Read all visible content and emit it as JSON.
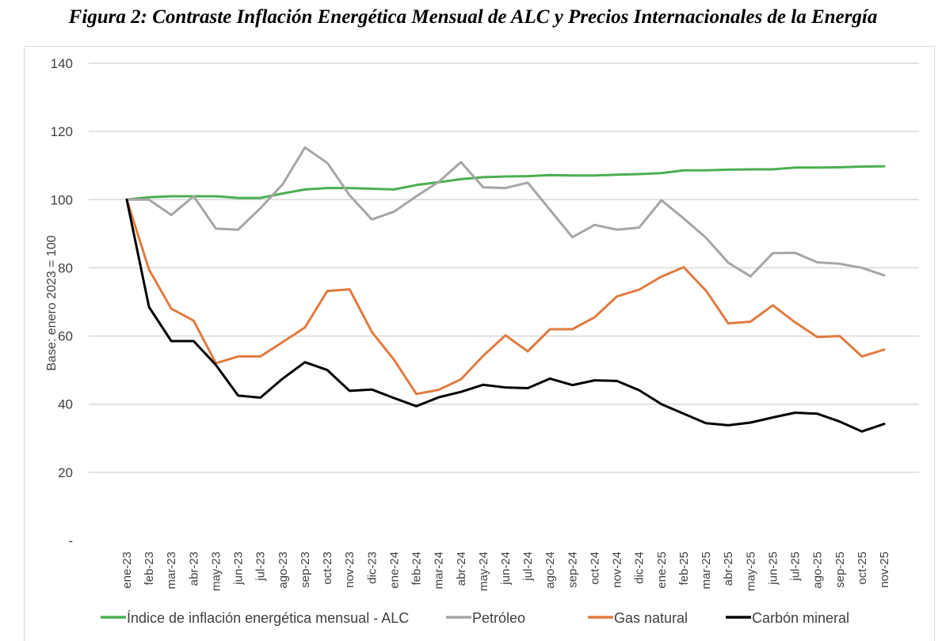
{
  "chart_data": {
    "type": "line",
    "title": "Figura 2: Contraste Inflación Energética Mensual de ALC y Precios Internacionales de la Energía",
    "xlabel": "",
    "ylabel": "Base: enero 2023 = 100",
    "ylim": [
      0,
      140
    ],
    "yticks": [
      0,
      20,
      40,
      60,
      80,
      100,
      120,
      140
    ],
    "ytick_labels": [
      "-",
      "20",
      "40",
      "60",
      "80",
      "100",
      "120",
      "140"
    ],
    "grid": true,
    "legend_position": "bottom",
    "categories": [
      "ene-23",
      "feb-23",
      "mar-23",
      "abr-23",
      "may-23",
      "jun-23",
      "jul-23",
      "ago-23",
      "sep-23",
      "oct-23",
      "nov-23",
      "dic-23",
      "ene-24",
      "feb-24",
      "mar-24",
      "abr-24",
      "may-24",
      "jun-24",
      "jul-24",
      "ago-24",
      "sep-24",
      "oct-24",
      "nov-24",
      "dic-24",
      "ene-25",
      "feb-25",
      "mar-25",
      "abr-25",
      "may-25",
      "jun-25",
      "jul-25",
      "ago-25",
      "sep-25",
      "oct-25",
      "nov-25"
    ],
    "series": [
      {
        "name": "Índice de inflación energética mensual - ALC",
        "color": "#4caf50",
        "values": [
          100,
          100.7,
          101,
          101,
          101,
          100.5,
          100.5,
          101.8,
          103,
          103.4,
          103.4,
          103.2,
          103,
          104.3,
          105.1,
          106,
          106.6,
          106.8,
          106.9,
          107.2,
          107.1,
          107.1,
          107.3,
          107.5,
          107.8,
          108.6,
          108.6,
          108.8,
          108.9,
          108.9,
          109.4,
          109.4,
          109.5,
          109.7,
          109.8
        ]
      },
      {
        "name": "Petróleo",
        "color": "#a6a6a6",
        "values": [
          100,
          100,
          95.5,
          101,
          91.5,
          91.2,
          97.5,
          104.5,
          115.3,
          110.8,
          101.3,
          94.2,
          96.5,
          101,
          105.2,
          111,
          103.6,
          103.4,
          105,
          97,
          89,
          92.6,
          91.2,
          91.8,
          99.8,
          94.5,
          88.8,
          81.5,
          77.5,
          84.3,
          84.4,
          81.6,
          81.2,
          80,
          77.8
        ]
      },
      {
        "name": "Gas natural",
        "color": "#e07b3f",
        "values": [
          100,
          79.5,
          68,
          64.5,
          52,
          54,
          54,
          58.2,
          62.5,
          73.2,
          73.7,
          61.2,
          53,
          43,
          44.2,
          47.3,
          54.2,
          60.2,
          55.5,
          62,
          62,
          65.5,
          71.6,
          73.6,
          77.4,
          80.2,
          73.3,
          63.7,
          64.2,
          69,
          64,
          59.7,
          60,
          54,
          56
        ]
      },
      {
        "name": "Carbón mineral",
        "color": "#000000",
        "values": [
          100,
          68.5,
          58.5,
          58.5,
          51.5,
          42.5,
          41.9,
          47.5,
          52.3,
          50,
          43.9,
          44.3,
          41.8,
          39.4,
          42,
          43.6,
          45.7,
          44.9,
          44.7,
          47.5,
          45.6,
          47,
          46.8,
          44.1,
          40,
          37.2,
          34.4,
          33.8,
          34.6,
          36.1,
          37.5,
          37.2,
          34.9,
          32,
          34.2
        ]
      }
    ]
  }
}
